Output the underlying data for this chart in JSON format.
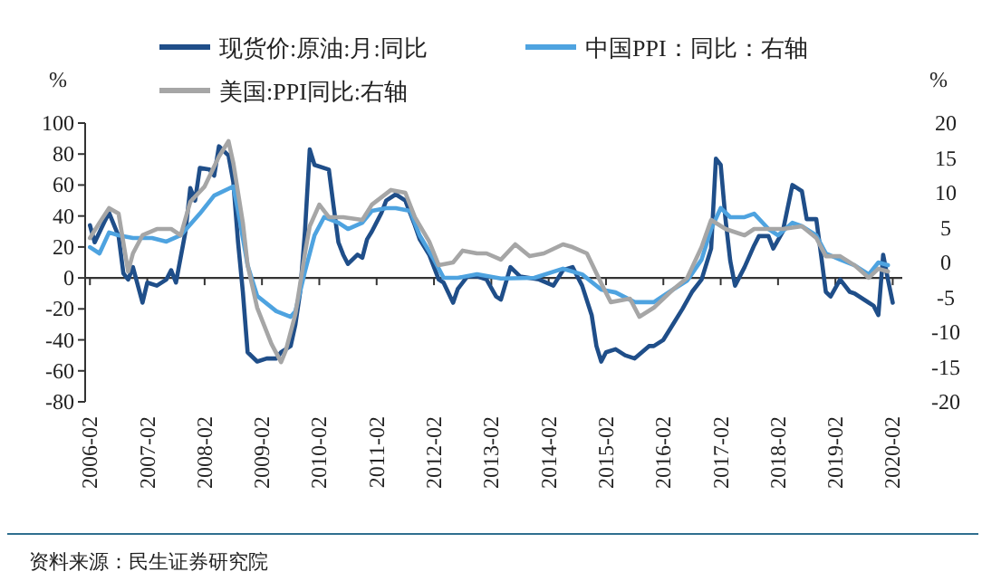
{
  "chart_data": {
    "type": "line",
    "ylabel": "%",
    "y2label": "%",
    "xlim": [
      "2006-01-01",
      "2020-04-01"
    ],
    "xticks": [
      "2006-02",
      "2007-02",
      "2008-02",
      "2009-02",
      "2010-02",
      "2011-02",
      "2012-02",
      "2013-02",
      "2014-02",
      "2015-02",
      "2016-02",
      "2017-02",
      "2018-02",
      "2019-02",
      "2020-02"
    ],
    "ylim": [
      -80,
      100
    ],
    "yticks": [
      -80,
      -60,
      -40,
      -20,
      0,
      20,
      40,
      60,
      80,
      100
    ],
    "y2lim": [
      -20,
      20
    ],
    "y2ticks": [
      -20,
      -15,
      -10,
      -5,
      0,
      5,
      10,
      15,
      20
    ],
    "legend": "top",
    "marker": "none",
    "line_style": "solid",
    "series": [
      {
        "name": "现货价:原油:月:同比",
        "color": "#1f4e89",
        "x": [
          "2006-02",
          "2006-03",
          "2006-05",
          "2006-06",
          "2006-08",
          "2006-09",
          "2006-10",
          "2006-11",
          "2007-01",
          "2007-02",
          "2007-04",
          "2007-06",
          "2007-07",
          "2007-08",
          "2007-10",
          "2007-11",
          "2007-12",
          "2008-01",
          "2008-03",
          "2008-04",
          "2008-05",
          "2008-07",
          "2008-08",
          "2008-09",
          "2008-10",
          "2008-11",
          "2009-01",
          "2009-03",
          "2009-05",
          "2009-06",
          "2009-08",
          "2009-09",
          "2009-10",
          "2009-11",
          "2009-12",
          "2010-01",
          "2010-04",
          "2010-05",
          "2010-06",
          "2010-07",
          "2010-08",
          "2010-10",
          "2010-11",
          "2010-12",
          "2011-01",
          "2011-03",
          "2011-04",
          "2011-06",
          "2011-08",
          "2011-10",
          "2011-11",
          "2012-01",
          "2012-03",
          "2012-04",
          "2012-06",
          "2012-07",
          "2012-09",
          "2012-11",
          "2013-01",
          "2013-03",
          "2013-04",
          "2013-06",
          "2013-08",
          "2013-12",
          "2014-03",
          "2014-05",
          "2014-07",
          "2014-09",
          "2014-11",
          "2014-12",
          "2015-01",
          "2015-02",
          "2015-04",
          "2015-06",
          "2015-08",
          "2015-11",
          "2015-12",
          "2016-02",
          "2016-04",
          "2016-06",
          "2016-08",
          "2016-10",
          "2016-12",
          "2017-01",
          "2017-02",
          "2017-03",
          "2017-04",
          "2017-05",
          "2017-07",
          "2017-09",
          "2017-10",
          "2017-12",
          "2018-01",
          "2018-03",
          "2018-05",
          "2018-07",
          "2018-08",
          "2018-10",
          "2018-11",
          "2018-12",
          "2019-01",
          "2019-03",
          "2019-05",
          "2019-06",
          "2019-09",
          "2019-10",
          "2019-11",
          "2019-12",
          "2020-01",
          "2020-02"
        ],
        "values": [
          34,
          23,
          36,
          42,
          27,
          3,
          -1,
          7,
          -16,
          -3,
          -5,
          -1,
          5,
          -3,
          30,
          58,
          50,
          71,
          70,
          66,
          85,
          79,
          62,
          23,
          -9,
          -48,
          -54,
          -52,
          -52,
          -48,
          -44,
          -30,
          -9,
          30,
          83,
          73,
          70,
          46,
          23,
          15,
          9,
          15,
          13,
          25,
          30,
          42,
          50,
          54,
          50,
          34,
          25,
          15,
          -1,
          -3,
          -16,
          -7,
          1,
          1,
          -1,
          -12,
          -14,
          7,
          1,
          -1,
          -5,
          5,
          7,
          -5,
          -24,
          -44,
          -54,
          -48,
          -46,
          -50,
          -52,
          -44,
          -44,
          -40,
          -30,
          -20,
          -9,
          -1,
          19,
          77,
          73,
          38,
          11,
          -5,
          7,
          21,
          27,
          27,
          19,
          30,
          60,
          56,
          38,
          38,
          15,
          -9,
          -12,
          -1,
          -9,
          -10,
          -16,
          -18,
          -24,
          15,
          -1,
          -16
        ]
      },
      {
        "name": "中国PPI：同比：右轴",
        "color": "#4ea3e0",
        "axis": "y2",
        "x": [
          "2006-02",
          "2006-04",
          "2006-06",
          "2006-08",
          "2006-11",
          "2007-03",
          "2007-06",
          "2007-09",
          "2008-01",
          "2008-04",
          "2008-08",
          "2008-09",
          "2008-11",
          "2009-01",
          "2009-05",
          "2009-08",
          "2009-09",
          "2009-11",
          "2010-01",
          "2010-03",
          "2010-06",
          "2010-08",
          "2010-11",
          "2011-01",
          "2011-04",
          "2011-06",
          "2011-09",
          "2011-11",
          "2012-02",
          "2012-04",
          "2012-07",
          "2012-11",
          "2013-04",
          "2013-11",
          "2014-05",
          "2014-09",
          "2015-01",
          "2015-04",
          "2015-08",
          "2015-12",
          "2016-04",
          "2016-07",
          "2016-10",
          "2016-12",
          "2017-02",
          "2017-04",
          "2017-07",
          "2017-09",
          "2017-12",
          "2018-02",
          "2018-05",
          "2018-07",
          "2018-10",
          "2018-12",
          "2019-03",
          "2019-06",
          "2019-09",
          "2019-11",
          "2020-01"
        ],
        "values": [
          2.2,
          1.3,
          4.3,
          3.9,
          3.5,
          3.5,
          3.0,
          3.9,
          7.0,
          9.6,
          10.9,
          7.4,
          -0.4,
          -4.8,
          -7.0,
          -7.8,
          -7.0,
          -1.3,
          3.9,
          6.5,
          5.7,
          4.8,
          5.7,
          7.4,
          7.8,
          7.8,
          7.4,
          3.9,
          0.4,
          -2.2,
          -2.2,
          -1.7,
          -2.3,
          -2.2,
          -0.9,
          -1.7,
          -3.9,
          -4.3,
          -5.7,
          -5.7,
          -3.9,
          -2.6,
          0.4,
          4.8,
          7.8,
          6.5,
          6.5,
          7.0,
          4.8,
          3.9,
          5.7,
          5.2,
          3.9,
          1.3,
          0.4,
          -0.4,
          -1.7,
          0,
          -0.4
        ]
      },
      {
        "name": "美国:PPI同比:右轴",
        "color": "#a6a6a6",
        "axis": "y2",
        "x": [
          "2006-02",
          "2006-04",
          "2006-06",
          "2006-08",
          "2006-10",
          "2006-11",
          "2007-01",
          "2007-04",
          "2007-07",
          "2007-09",
          "2007-11",
          "2008-02",
          "2008-05",
          "2008-07",
          "2008-08",
          "2008-10",
          "2008-11",
          "2009-01",
          "2009-04",
          "2009-06",
          "2009-07",
          "2009-09",
          "2009-11",
          "2009-12",
          "2010-02",
          "2010-04",
          "2010-07",
          "2010-11",
          "2011-01",
          "2011-05",
          "2011-08",
          "2011-10",
          "2012-01",
          "2012-03",
          "2012-06",
          "2012-08",
          "2012-11",
          "2013-01",
          "2013-04",
          "2013-07",
          "2013-10",
          "2014-01",
          "2014-05",
          "2014-07",
          "2014-10",
          "2015-01",
          "2015-03",
          "2015-07",
          "2015-09",
          "2015-12",
          "2016-04",
          "2016-07",
          "2016-10",
          "2016-12",
          "2017-03",
          "2017-07",
          "2017-09",
          "2017-12",
          "2018-03",
          "2018-07",
          "2018-10",
          "2018-12",
          "2019-03",
          "2019-06",
          "2019-09",
          "2019-11",
          "2020-01"
        ],
        "values": [
          3.5,
          5.7,
          7.8,
          7.0,
          -1.3,
          1.3,
          3.9,
          4.8,
          4.8,
          3.9,
          8.7,
          10.9,
          15.2,
          17.4,
          14.3,
          5.7,
          -0.4,
          -6.5,
          -11.7,
          -14.3,
          -12.6,
          -7.4,
          1.3,
          5.2,
          8.3,
          6.5,
          6.5,
          6.1,
          8.3,
          10.4,
          10.0,
          6.5,
          3.0,
          -0.4,
          0,
          1.7,
          1.3,
          1.3,
          0.4,
          2.6,
          0.9,
          1.3,
          2.6,
          2.2,
          1.3,
          -3.0,
          -5.7,
          -5.2,
          -7.8,
          -6.5,
          -3.9,
          -2.2,
          2.2,
          6.1,
          4.8,
          3.9,
          4.8,
          4.8,
          4.8,
          5.2,
          3.5,
          0.9,
          0.9,
          -0.4,
          -2.2,
          -0.9,
          -1.3
        ]
      }
    ],
    "annotations": [
      "资料来源：民生证券研究院"
    ]
  }
}
